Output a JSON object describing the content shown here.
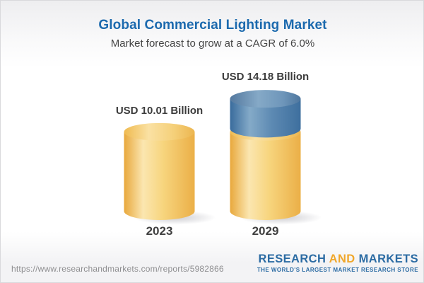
{
  "header": {
    "title": "Global Commercial Lighting Market",
    "subtitle": "Market forecast to grow at a CAGR of 6.0%",
    "title_color": "#1c6aae"
  },
  "chart_data": {
    "type": "bar",
    "style": "3d-cylinder",
    "title": "Global Commercial Lighting Market",
    "subtitle": "Market forecast to grow at a CAGR of 6.0%",
    "categories": [
      "2023",
      "2029"
    ],
    "values": [
      10.01,
      14.18
    ],
    "unit": "USD Billion",
    "value_labels": [
      "USD 10.01 Billion",
      "USD 14.18 Billion"
    ],
    "cagr_percent": 6.0,
    "segments": [
      [
        {
          "value": 10.01,
          "color": "yellow"
        }
      ],
      [
        {
          "value": 10.01,
          "color": "yellow"
        },
        {
          "value": 4.17,
          "color": "blue"
        }
      ]
    ],
    "colors": {
      "yellow": "#f2c868",
      "blue": "#4a7ba8"
    },
    "legend": "none",
    "grid": false,
    "axes": "none"
  },
  "footer": {
    "url": "https://www.researchandmarkets.com/reports/5982866",
    "logo": {
      "word1": "RESEARCH",
      "word2": "AND",
      "word3": "MARKETS",
      "tagline": "THE WORLD'S LARGEST MARKET RESEARCH STORE",
      "blue": "#2b6ba3",
      "gold": "#f0a72b"
    }
  }
}
